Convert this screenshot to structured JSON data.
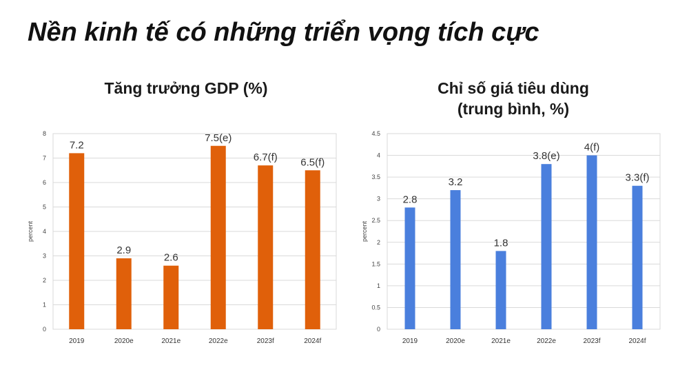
{
  "title": "Nền kinh tế có những triển vọng tích cực",
  "chart_data": [
    {
      "type": "bar",
      "title": "Tăng trưởng GDP (%)",
      "ylabel": "percent",
      "categories": [
        "2019",
        "2020e",
        "2021e",
        "2022e",
        "2023f",
        "2024f"
      ],
      "values": [
        7.2,
        2.9,
        2.6,
        7.5,
        6.7,
        6.5
      ],
      "data_labels": [
        "7.2",
        "2.9",
        "2.6",
        "7.5(e)",
        "6.7(f)",
        "6.5(f)"
      ],
      "yticks": [
        "0",
        "1",
        "2",
        "3",
        "4",
        "5",
        "6",
        "7",
        "8"
      ],
      "ylim": [
        0,
        8
      ],
      "color": "#E0600A",
      "grid": true
    },
    {
      "type": "bar",
      "title": "Chỉ số giá tiêu dùng\n(trung bình, %)",
      "title_lines": [
        "Chỉ số giá tiêu dùng",
        "(trung bình, %)"
      ],
      "ylabel": "percent",
      "categories": [
        "2019",
        "2020e",
        "2021e",
        "2022e",
        "2023f",
        "2024f"
      ],
      "values": [
        2.8,
        3.2,
        1.8,
        3.8,
        4.0,
        3.3
      ],
      "data_labels": [
        "2.8",
        "3.2",
        "1.8",
        "3.8(e)",
        "4(f)",
        "3.3(f)"
      ],
      "yticks": [
        "0",
        "0.5",
        "1",
        "1.5",
        "2",
        "2.5",
        "3",
        "3.5",
        "4",
        "4.5"
      ],
      "ylim": [
        0,
        4.5
      ],
      "color": "#4A7FDD",
      "grid": true
    }
  ]
}
